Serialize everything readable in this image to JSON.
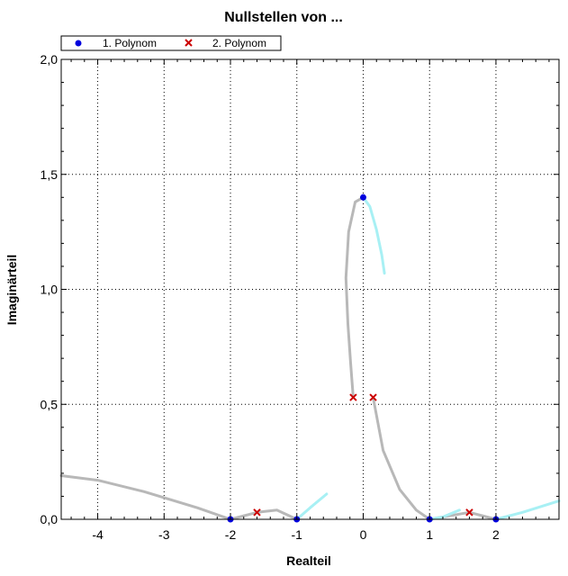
{
  "chart_data": {
    "type": "scatter",
    "title": "Nullstellen von ...",
    "xlabel": "Realteil",
    "ylabel": "Imaginärteil",
    "xlim": [
      -4.55,
      2.95
    ],
    "ylim": [
      0,
      2.0
    ],
    "xticks": [
      {
        "value": -4,
        "label": "-4"
      },
      {
        "value": -3,
        "label": "-3"
      },
      {
        "value": -2,
        "label": "-2"
      },
      {
        "value": -1,
        "label": "-1"
      },
      {
        "value": 0,
        "label": "0"
      },
      {
        "value": 1,
        "label": "1"
      },
      {
        "value": 2,
        "label": "2"
      }
    ],
    "yticks": [
      {
        "value": 0,
        "label": "0,0"
      },
      {
        "value": 0.5,
        "label": "0,5"
      },
      {
        "value": 1.0,
        "label": "1,0"
      },
      {
        "value": 1.5,
        "label": "1,5"
      },
      {
        "value": 2.0,
        "label": "2,0"
      }
    ],
    "grid": true,
    "legend_position": "top-left",
    "series": [
      {
        "name": "1. Polynom",
        "marker": "circle",
        "color": "#0000dd",
        "points": [
          {
            "x": 0.0,
            "y": 1.4
          },
          {
            "x": -2.0,
            "y": 0.0
          },
          {
            "x": -1.0,
            "y": 0.0
          },
          {
            "x": 1.0,
            "y": 0.0
          },
          {
            "x": 2.0,
            "y": 0.0
          }
        ]
      },
      {
        "name": "2. Polynom",
        "marker": "x",
        "color": "#cc0000",
        "points": [
          {
            "x": -0.15,
            "y": 0.53
          },
          {
            "x": 0.15,
            "y": 0.53
          },
          {
            "x": -1.6,
            "y": 0.03
          },
          {
            "x": 1.6,
            "y": 0.03
          }
        ]
      }
    ],
    "trajectories": [
      {
        "color": "#b8b8b8",
        "points": [
          [
            0,
            1.4
          ],
          [
            -0.12,
            1.38
          ],
          [
            -0.22,
            1.25
          ],
          [
            -0.26,
            1.05
          ],
          [
            -0.23,
            0.85
          ],
          [
            -0.19,
            0.68
          ],
          [
            -0.15,
            0.53
          ]
        ]
      },
      {
        "color": "#b8b8b8",
        "points": [
          [
            0.15,
            0.53
          ],
          [
            0.3,
            0.3
          ],
          [
            0.55,
            0.13
          ],
          [
            0.8,
            0.04
          ],
          [
            1.0,
            0.0
          ]
        ]
      },
      {
        "color": "#b8b8b8",
        "points": [
          [
            -4.55,
            0.19
          ],
          [
            -4.0,
            0.17
          ],
          [
            -3.3,
            0.12
          ],
          [
            -2.5,
            0.05
          ],
          [
            -2.0,
            0.0
          ]
        ]
      },
      {
        "color": "#b8b8b8",
        "points": [
          [
            -2.0,
            0.0
          ],
          [
            -1.6,
            0.03
          ]
        ]
      },
      {
        "color": "#b8b8b8",
        "points": [
          [
            -1.6,
            0.03
          ],
          [
            -1.3,
            0.04
          ],
          [
            -1.0,
            0.0
          ]
        ]
      },
      {
        "color": "#b8b8b8",
        "points": [
          [
            1.0,
            0.0
          ],
          [
            1.2,
            0.01
          ],
          [
            1.6,
            0.03
          ],
          [
            2.0,
            0.0
          ]
        ]
      },
      {
        "color": "#a8f0f4",
        "points": [
          [
            0.0,
            1.4
          ],
          [
            0.1,
            1.36
          ],
          [
            0.2,
            1.26
          ],
          [
            0.28,
            1.15
          ],
          [
            0.32,
            1.07
          ]
        ]
      },
      {
        "color": "#a8f0f4",
        "points": [
          [
            -1.0,
            0.0
          ],
          [
            -0.8,
            0.05
          ],
          [
            -0.55,
            0.11
          ]
        ]
      },
      {
        "color": "#a8f0f4",
        "points": [
          [
            1.0,
            0.0
          ],
          [
            1.2,
            0.01
          ],
          [
            1.45,
            0.04
          ]
        ]
      },
      {
        "color": "#a8f0f4",
        "points": [
          [
            2.0,
            0.0
          ],
          [
            2.4,
            0.03
          ],
          [
            2.95,
            0.08
          ]
        ]
      }
    ]
  }
}
